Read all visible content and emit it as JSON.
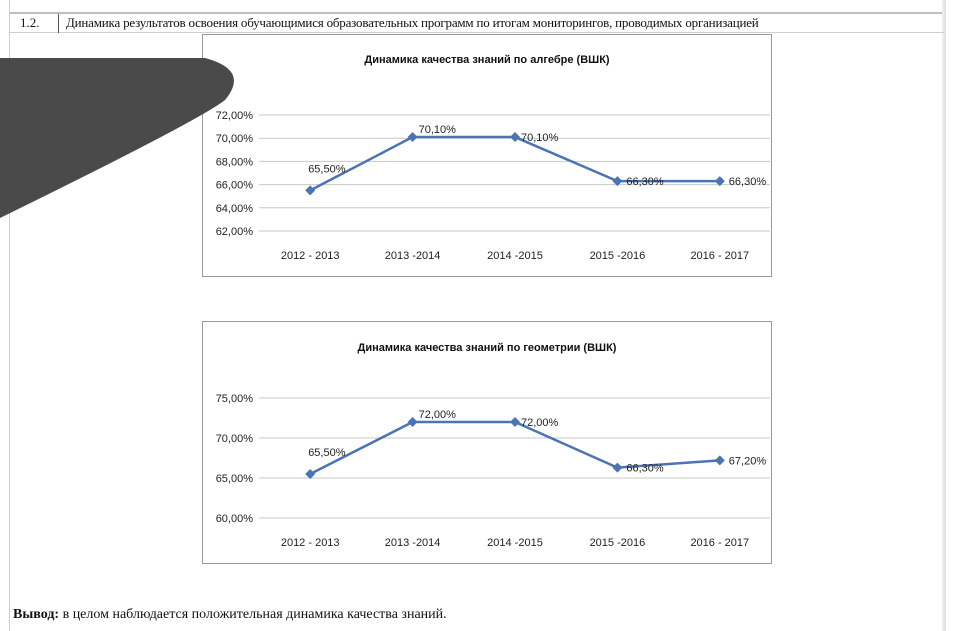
{
  "header": {
    "number": "1.2.",
    "text": "Динамика результатов освоения обучающимися образовательных программ по итогам мониторингов, проводимых организацией"
  },
  "conclusion": {
    "label": "Вывод:",
    "text": " в целом наблюдается положительная динамика качества знаний."
  },
  "colors": {
    "series": "#4a74b4",
    "grid": "#c8c8c8",
    "decoration": "#4a4a4a"
  },
  "chart_data": [
    {
      "type": "line",
      "title": "Динамика  качества знаний по алгебре (ВШК)",
      "categories": [
        "2012 - 2013",
        "2013 -2014",
        "2014 -2015",
        "2015 -2016",
        "2016 - 2017"
      ],
      "values": [
        65.5,
        70.1,
        70.1,
        66.3,
        66.3
      ],
      "data_labels": [
        "65,50%",
        "70,10%",
        "70,10%",
        "66,30%",
        "66,30%"
      ],
      "yticks": [
        62,
        64,
        66,
        68,
        70,
        72
      ],
      "ytick_labels": [
        "62,00%",
        "64,00%",
        "66,00%",
        "68,00%",
        "70,00%",
        "72,00%"
      ],
      "ylim": [
        62,
        72
      ],
      "grid": true,
      "legend": "none"
    },
    {
      "type": "line",
      "title": "Динамика  качества знаний по геометрии (ВШК)",
      "categories": [
        "2012 - 2013",
        "2013 -2014",
        "2014 -2015",
        "2015 -2016",
        "2016 - 2017"
      ],
      "values": [
        65.5,
        72.0,
        72.0,
        66.3,
        67.2
      ],
      "data_labels": [
        "65,50%",
        "72,00%",
        "72,00%",
        "66,30%",
        "67,20%"
      ],
      "yticks": [
        60,
        65,
        70,
        75
      ],
      "ytick_labels": [
        "60,00%",
        "65,00%",
        "70,00%",
        "75,00%"
      ],
      "ylim": [
        60,
        75
      ],
      "grid": true,
      "legend": "none"
    }
  ]
}
